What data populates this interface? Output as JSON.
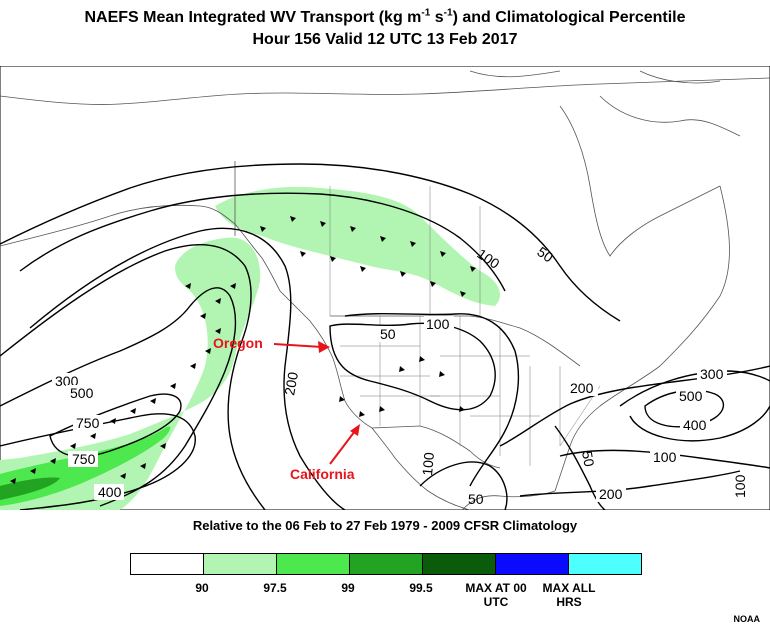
{
  "title_line1_prefix": "NAEFS Mean Integrated WV Transport (kg m",
  "title_line1_exp1": "-1",
  "title_line1_mid": " s",
  "title_line1_exp2": "-1",
  "title_line1_suffix": ") and Climatological Percentile",
  "title_line2": "Hour 156 Valid 12 UTC 13 Feb 2017",
  "subtitle": "Relative to the 06 Feb to 27 Feb 1979 - 2009 CFSR Climatology",
  "legend": {
    "colors": [
      "#ffffff",
      "#b2f5b2",
      "#4de84d",
      "#22a422",
      "#0a5c0a",
      "#0a0aff",
      "#4dffff"
    ],
    "labels": [
      "90",
      "97.5",
      "99",
      "99.5",
      "MAX AT 00 UTC",
      "MAX ALL HRS"
    ]
  },
  "contour_labels": [
    "300",
    "500",
    "750",
    "750",
    "400",
    "200",
    "50",
    "100",
    "100",
    "50",
    "200",
    "300",
    "500",
    "400",
    "100",
    "50",
    "200",
    "100",
    "100",
    "50"
  ],
  "annotations": {
    "oregon": "Oregon",
    "california": "California",
    "color": "#e8141a"
  },
  "credit": "NOAA"
}
